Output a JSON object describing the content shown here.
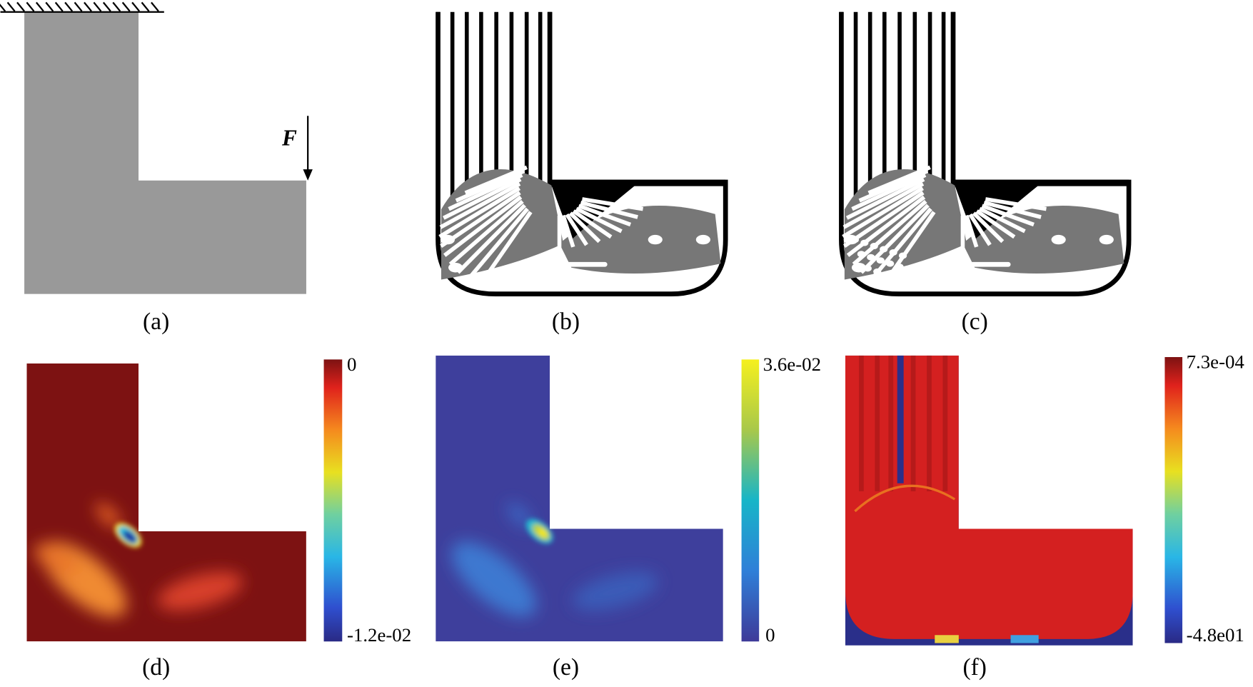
{
  "panels": [
    {
      "caption": "(a)",
      "force_label": "F"
    },
    {
      "caption": "(b)"
    },
    {
      "caption": "(c)"
    },
    {
      "caption": "(d)",
      "colorbar": {
        "max_label": "0",
        "min_label": "-1.2e-02"
      }
    },
    {
      "caption": "(e)",
      "colorbar": {
        "max_label": "3.6e-02",
        "min_label": "0"
      }
    },
    {
      "caption": "(f)",
      "colorbar": {
        "max_label": "7.3e-04",
        "min_label": "-4.8e01"
      }
    }
  ]
}
